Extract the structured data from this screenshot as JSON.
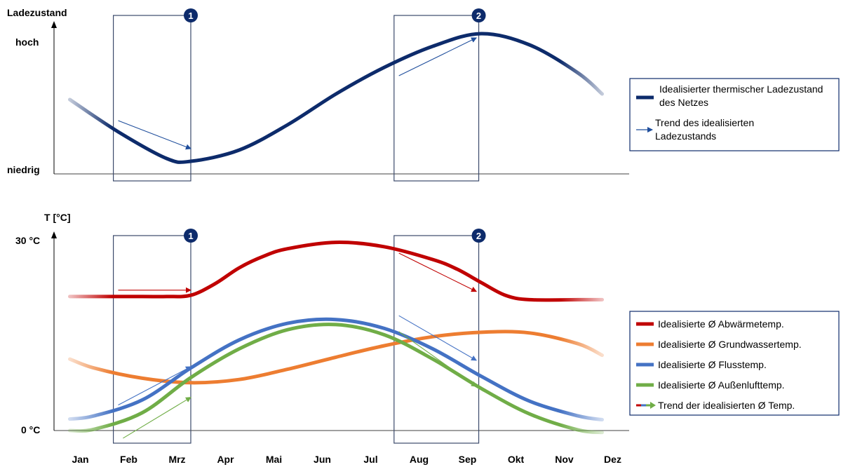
{
  "chart_data": [
    {
      "type": "line",
      "ylabel": "Ladezustand",
      "y_tick_labels": {
        "high": "hoch",
        "low": "niedrig"
      },
      "categories": [
        "Jan",
        "Feb",
        "Mrz",
        "Apr",
        "Mai",
        "Jun",
        "Jul",
        "Aug",
        "Sep",
        "Okt",
        "Nov",
        "Dez"
      ],
      "ylim": [
        0,
        1
      ],
      "series": [
        {
          "name": "Idealisierter thermischer Ladezustand des Netzes",
          "color": "#0d2b6b",
          "x": [
            0.5,
            1.5,
            2.5,
            3.0,
            4.0,
            5.0,
            6.0,
            7.0,
            8.0,
            9.0,
            10.0,
            11.0,
            11.5
          ],
          "values": [
            0.53,
            0.3,
            0.11,
            0.09,
            0.17,
            0.35,
            0.57,
            0.76,
            0.91,
            1.0,
            0.92,
            0.72,
            0.57
          ]
        }
      ],
      "trend_arrows": [
        {
          "from": [
            1.5,
            0.38
          ],
          "to": [
            3.0,
            0.18
          ],
          "color": "#1f4e9c"
        },
        {
          "from": [
            7.3,
            0.7
          ],
          "to": [
            8.9,
            0.97
          ],
          "color": "#1f4e9c"
        }
      ],
      "legend_extra": "Trend des idealisierten Ladezustands",
      "highlight_boxes": [
        {
          "label": "1",
          "x_range": [
            1.4,
            3.0
          ]
        },
        {
          "label": "2",
          "x_range": [
            7.2,
            8.95
          ]
        }
      ]
    },
    {
      "type": "line",
      "ylabel": "T [°C]",
      "y_tick_labels": {
        "high": "30 °C",
        "low": "0 °C"
      },
      "categories": [
        "Jan",
        "Feb",
        "Mrz",
        "Apr",
        "Mai",
        "Jun",
        "Jul",
        "Aug",
        "Sep",
        "Okt",
        "Nov",
        "Dez"
      ],
      "ylim": [
        0,
        30
      ],
      "series": [
        {
          "name": "Idealisierte Ø Abwärmetemp.",
          "color": "#c00000",
          "x": [
            0.5,
            1.0,
            2.0,
            2.5,
            3.0,
            3.5,
            4.0,
            4.5,
            5.0,
            6.0,
            7.0,
            8.0,
            8.5,
            9.0,
            9.5,
            10.0,
            11.0,
            11.5
          ],
          "values": [
            21,
            21,
            21,
            21,
            21.2,
            23,
            25.5,
            27.3,
            28.5,
            29.5,
            28.8,
            26.8,
            25.3,
            23.2,
            21.2,
            20.5,
            20.5,
            20.5
          ]
        },
        {
          "name": "Idealisierte Ø Grundwassertemp.",
          "color": "#ed7d31",
          "x": [
            0.5,
            1.0,
            2.0,
            3.0,
            4.0,
            5.0,
            6.0,
            7.0,
            8.0,
            9.0,
            10.0,
            11.0,
            11.5
          ],
          "values": [
            11.2,
            9.8,
            8.2,
            7.5,
            8.0,
            9.6,
            11.5,
            13.3,
            14.7,
            15.4,
            15.3,
            13.6,
            11.8
          ]
        },
        {
          "name": "Idealisierte Ø Flusstemp.",
          "color": "#4472c4",
          "x": [
            0.5,
            1.0,
            2.0,
            3.0,
            4.0,
            5.0,
            6.0,
            7.0,
            8.0,
            9.0,
            10.0,
            11.0,
            11.5
          ],
          "values": [
            1.8,
            2.3,
            4.8,
            9.8,
            14.2,
            16.8,
            17.4,
            16.0,
            12.8,
            8.5,
            4.6,
            2.3,
            1.7
          ]
        },
        {
          "name": "Idealisierte Ø Außenlufttemp.",
          "color": "#70ad47",
          "x": [
            0.5,
            1.0,
            2.0,
            3.0,
            4.0,
            5.0,
            6.0,
            7.0,
            8.0,
            9.0,
            10.0,
            11.0,
            11.5
          ],
          "values": [
            0,
            0.2,
            2.8,
            8.3,
            12.8,
            15.8,
            16.6,
            15.0,
            11.2,
            6.6,
            2.6,
            0.1,
            -0.3
          ]
        }
      ],
      "trend_arrows": [
        {
          "from": [
            1.5,
            22
          ],
          "to": [
            3.0,
            22
          ],
          "color": "#c00000"
        },
        {
          "from": [
            7.3,
            27.8
          ],
          "to": [
            8.9,
            21.8
          ],
          "color": "#c00000"
        },
        {
          "from": [
            1.5,
            4
          ],
          "to": [
            3.0,
            10
          ],
          "color": "#4472c4"
        },
        {
          "from": [
            7.3,
            18
          ],
          "to": [
            8.9,
            11
          ],
          "color": "#4472c4"
        },
        {
          "from": [
            1.6,
            -1.2
          ],
          "to": [
            3.0,
            5.2
          ],
          "color": "#70ad47"
        },
        {
          "from": [
            7.3,
            15.5
          ],
          "to": [
            8.9,
            6.9
          ],
          "color": "#70ad47"
        }
      ],
      "legend_extra": "Trend der idealisierten Ø Temp.",
      "highlight_boxes": [
        {
          "label": "1",
          "x_range": [
            1.4,
            3.0
          ]
        },
        {
          "label": "2",
          "x_range": [
            7.2,
            8.95
          ]
        }
      ]
    }
  ]
}
